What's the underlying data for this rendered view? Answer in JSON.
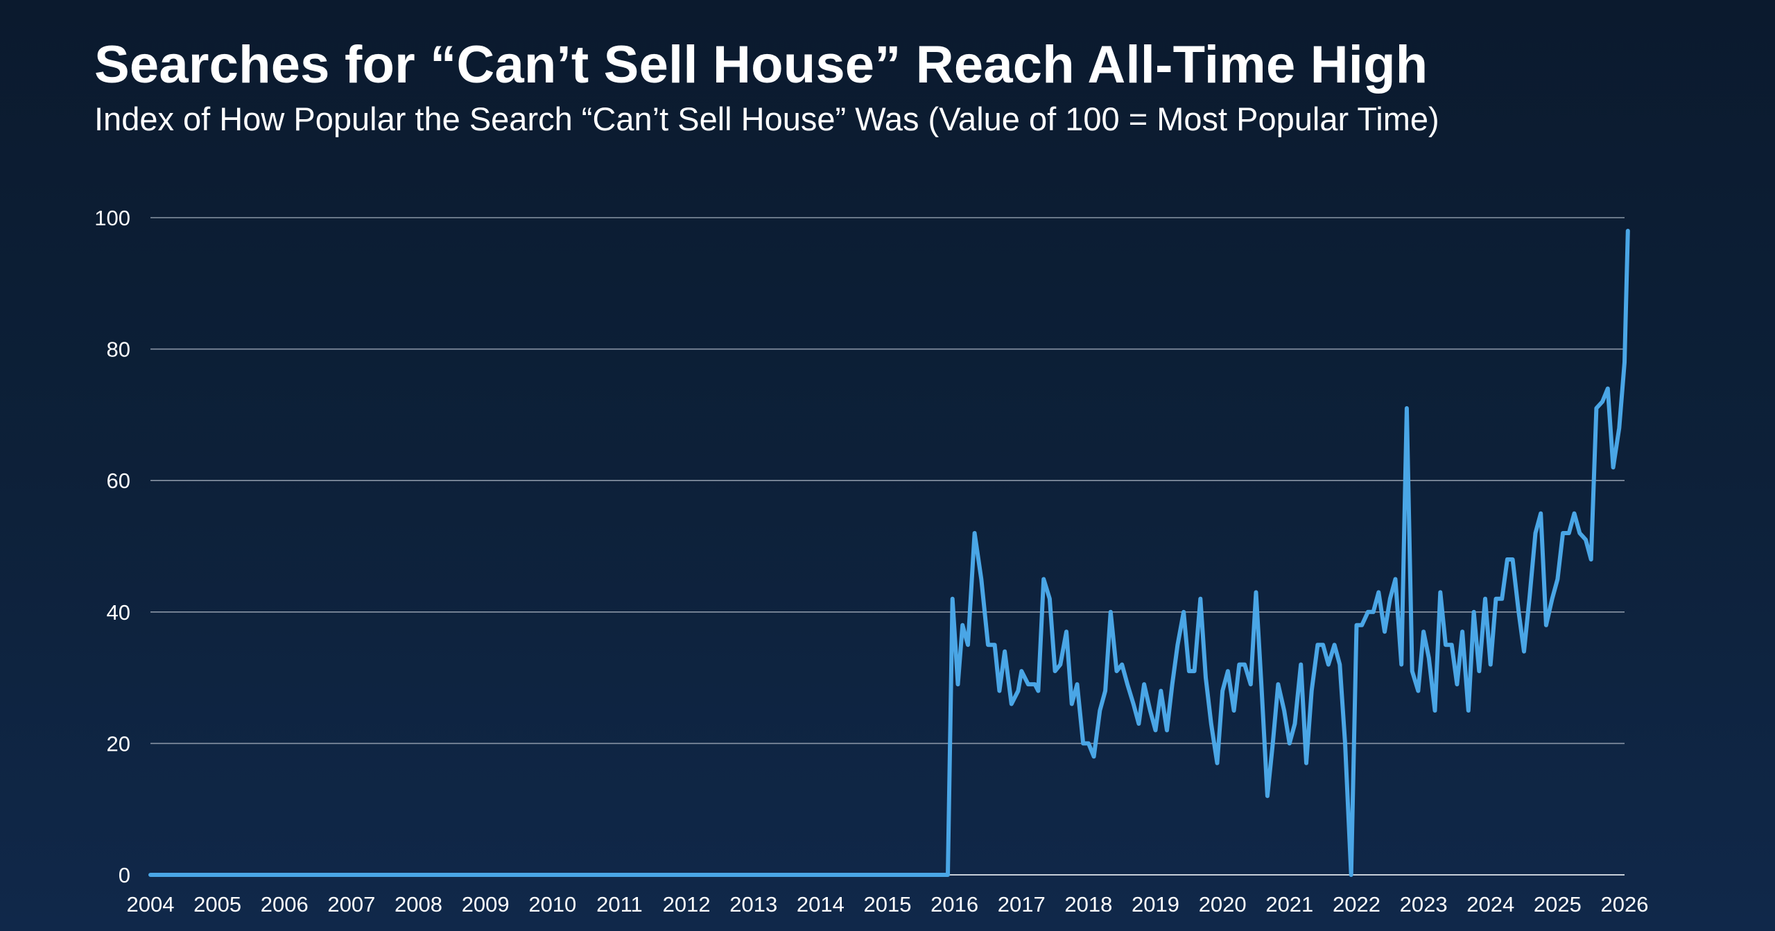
{
  "title": "Searches for “Can’t Sell House” Reach All-Time High",
  "subtitle": "Index of How Popular the Search “Can’t Sell House” Was (Value of 100 = Most Popular Time)",
  "colors": {
    "background": "#0c1d33",
    "line": "#4aa6e6",
    "grid": "#8a96a6",
    "text": "#ffffff"
  },
  "chart_data": {
    "type": "line",
    "title": "Searches for “Can’t Sell House” Reach All-Time High",
    "subtitle": "Index of How Popular the Search “Can’t Sell House” Was (Value of 100 = Most Popular Time)",
    "xlabel": "",
    "ylabel": "",
    "xlim": [
      2004,
      2026
    ],
    "ylim": [
      0,
      100
    ],
    "grid": true,
    "y_ticks": [
      "0",
      "20",
      "40",
      "60",
      "80",
      "100"
    ],
    "x_ticks": [
      "2004",
      "2005",
      "2006",
      "2007",
      "2008",
      "2009",
      "2010",
      "2011",
      "2012",
      "2013",
      "2014",
      "2015",
      "2016",
      "2017",
      "2018",
      "2019",
      "2020",
      "2021",
      "2022",
      "2023",
      "2024",
      "2025",
      "2026"
    ],
    "series": [
      {
        "points": [
          [
            2004.0,
            0
          ],
          [
            2015.9,
            0
          ],
          [
            2015.97,
            42
          ],
          [
            2016.05,
            29
          ],
          [
            2016.12,
            38
          ],
          [
            2016.2,
            35
          ],
          [
            2016.3,
            52
          ],
          [
            2016.4,
            45
          ],
          [
            2016.5,
            35
          ],
          [
            2016.6,
            35
          ],
          [
            2016.67,
            28
          ],
          [
            2016.75,
            34
          ],
          [
            2016.85,
            26
          ],
          [
            2016.95,
            28
          ],
          [
            2017.0,
            31
          ],
          [
            2017.1,
            29
          ],
          [
            2017.2,
            29
          ],
          [
            2017.25,
            28
          ],
          [
            2017.33,
            45
          ],
          [
            2017.42,
            42
          ],
          [
            2017.5,
            31
          ],
          [
            2017.58,
            32
          ],
          [
            2017.67,
            37
          ],
          [
            2017.75,
            26
          ],
          [
            2017.83,
            29
          ],
          [
            2017.92,
            20
          ],
          [
            2018.0,
            20
          ],
          [
            2018.08,
            18
          ],
          [
            2018.17,
            25
          ],
          [
            2018.25,
            28
          ],
          [
            2018.33,
            40
          ],
          [
            2018.42,
            31
          ],
          [
            2018.5,
            32
          ],
          [
            2018.58,
            29
          ],
          [
            2018.67,
            26
          ],
          [
            2018.75,
            23
          ],
          [
            2018.83,
            29
          ],
          [
            2018.92,
            25
          ],
          [
            2019.0,
            22
          ],
          [
            2019.08,
            28
          ],
          [
            2019.17,
            22
          ],
          [
            2019.25,
            29
          ],
          [
            2019.33,
            35
          ],
          [
            2019.42,
            40
          ],
          [
            2019.5,
            31
          ],
          [
            2019.58,
            31
          ],
          [
            2019.67,
            42
          ],
          [
            2019.75,
            30
          ],
          [
            2019.83,
            23
          ],
          [
            2019.92,
            17
          ],
          [
            2020.0,
            28
          ],
          [
            2020.08,
            31
          ],
          [
            2020.17,
            25
          ],
          [
            2020.25,
            32
          ],
          [
            2020.33,
            32
          ],
          [
            2020.42,
            29
          ],
          [
            2020.5,
            43
          ],
          [
            2020.58,
            29
          ],
          [
            2020.67,
            12
          ],
          [
            2020.75,
            20
          ],
          [
            2020.83,
            29
          ],
          [
            2020.92,
            25
          ],
          [
            2021.0,
            20
          ],
          [
            2021.08,
            23
          ],
          [
            2021.17,
            32
          ],
          [
            2021.25,
            17
          ],
          [
            2021.33,
            28
          ],
          [
            2021.42,
            35
          ],
          [
            2021.5,
            35
          ],
          [
            2021.58,
            32
          ],
          [
            2021.67,
            35
          ],
          [
            2021.75,
            32
          ],
          [
            2021.83,
            20
          ],
          [
            2021.92,
            0
          ],
          [
            2022.0,
            38
          ],
          [
            2022.08,
            38
          ],
          [
            2022.17,
            40
          ],
          [
            2022.25,
            40
          ],
          [
            2022.33,
            43
          ],
          [
            2022.42,
            37
          ],
          [
            2022.5,
            42
          ],
          [
            2022.58,
            45
          ],
          [
            2022.67,
            32
          ],
          [
            2022.75,
            71
          ],
          [
            2022.83,
            31
          ],
          [
            2022.92,
            28
          ],
          [
            2023.0,
            37
          ],
          [
            2023.08,
            33
          ],
          [
            2023.17,
            25
          ],
          [
            2023.25,
            43
          ],
          [
            2023.33,
            35
          ],
          [
            2023.42,
            35
          ],
          [
            2023.5,
            29
          ],
          [
            2023.58,
            37
          ],
          [
            2023.67,
            25
          ],
          [
            2023.75,
            40
          ],
          [
            2023.83,
            31
          ],
          [
            2023.92,
            42
          ],
          [
            2024.0,
            32
          ],
          [
            2024.08,
            42
          ],
          [
            2024.17,
            42
          ],
          [
            2024.25,
            48
          ],
          [
            2024.33,
            48
          ],
          [
            2024.42,
            40
          ],
          [
            2024.5,
            34
          ],
          [
            2024.58,
            42
          ],
          [
            2024.67,
            52
          ],
          [
            2024.75,
            55
          ],
          [
            2024.83,
            38
          ],
          [
            2024.92,
            42
          ],
          [
            2025.0,
            45
          ],
          [
            2025.08,
            52
          ],
          [
            2025.17,
            52
          ],
          [
            2025.25,
            55
          ],
          [
            2025.33,
            52
          ],
          [
            2025.42,
            51
          ],
          [
            2025.5,
            48
          ],
          [
            2025.58,
            71
          ],
          [
            2025.67,
            72
          ],
          [
            2025.75,
            74
          ],
          [
            2025.83,
            62
          ],
          [
            2025.92,
            68
          ],
          [
            2026.0,
            78
          ],
          [
            2026.05,
            98
          ]
        ]
      }
    ]
  }
}
